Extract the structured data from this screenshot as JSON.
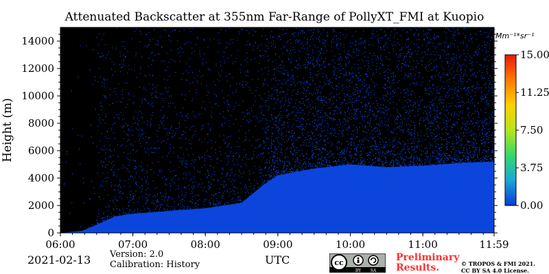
{
  "chart_data": {
    "type": "heatmap",
    "title": "Attenuated Backscatter at 355nm Far-Range of PollyXT_FMI at Kuopio",
    "ylabel": "Height (m)",
    "xlabel": "UTC",
    "ylim": [
      0,
      15000
    ],
    "yticks": [
      "0",
      "2000",
      "4000",
      "6000",
      "8000",
      "10000",
      "12000",
      "14000"
    ],
    "ytick_values": [
      0,
      2000,
      4000,
      6000,
      8000,
      10000,
      12000,
      14000
    ],
    "xticks": [
      "06:00",
      "07:00",
      "08:00",
      "09:00",
      "10:00",
      "11:00",
      "11:59"
    ],
    "xtick_hours": [
      6,
      7,
      8,
      9,
      10,
      11,
      11.983
    ],
    "xlim_hours": [
      6,
      11.983
    ],
    "colorbar": {
      "unit": "Mm⁻¹*sr⁻¹",
      "ticks": [
        "0.00",
        "3.75",
        "7.50",
        "11.25",
        "15.00"
      ],
      "range": [
        0,
        15
      ],
      "colors": [
        "#0a3ad6",
        "#1aa7d8",
        "#34d96a",
        "#b6e61a",
        "#ffd000",
        "#ff7a00",
        "#e61a0a"
      ]
    },
    "background_color": "#000000",
    "signal_color": "#0b45dc",
    "dense_signal_top_m": [
      [
        6.0,
        0
      ],
      [
        6.3,
        150
      ],
      [
        6.5,
        600
      ],
      [
        6.75,
        1200
      ],
      [
        7.0,
        1400
      ],
      [
        7.5,
        1600
      ],
      [
        8.0,
        1800
      ],
      [
        8.5,
        2200
      ],
      [
        8.8,
        3500
      ],
      [
        9.0,
        4200
      ],
      [
        9.5,
        4700
      ],
      [
        10.0,
        5000
      ],
      [
        10.5,
        4800
      ],
      [
        11.0,
        4900
      ],
      [
        11.5,
        5100
      ],
      [
        11.983,
        5200
      ]
    ]
  },
  "footer": {
    "date": "2021-02-13",
    "version": "Version: 2.0",
    "calibration": "Calibration: History",
    "utc": "UTC",
    "preliminary_line1": "Preliminary",
    "preliminary_line2": "Results.",
    "copyright_line1": "© TROPOS & FMI 2021.",
    "copyright_line2": "CC BY SA 4.0 License.",
    "license_badge": {
      "cc": "cc",
      "by": "BY",
      "sa": "SA"
    }
  }
}
